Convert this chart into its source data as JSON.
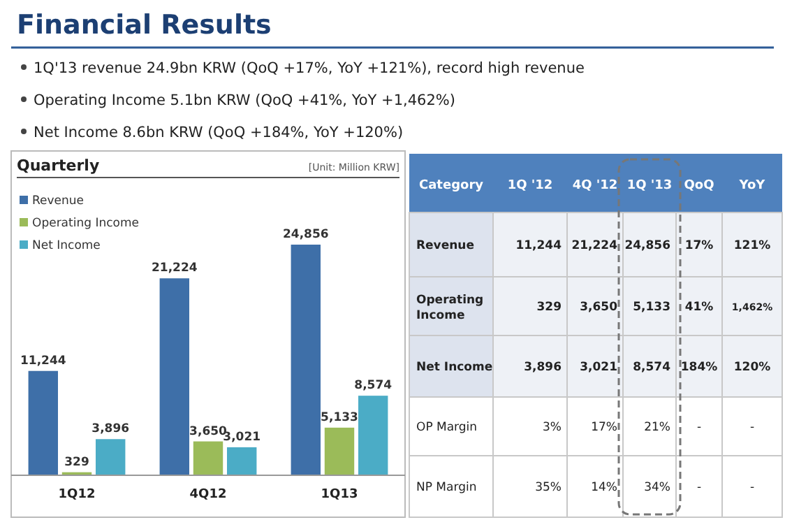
{
  "chart_data": [
    {
      "type": "bar",
      "title": "Quarterly",
      "categories": [
        "1Q12",
        "4Q12",
        "1Q13"
      ],
      "series": [
        {
          "name": "Revenue",
          "color": "#3e6fa8",
          "values": [
            11244,
            21224,
            24856
          ],
          "value_labels": [
            "11,244",
            "21,224",
            "24,856"
          ]
        },
        {
          "name": "Operating Income",
          "color": "#9bbb59",
          "values": [
            329,
            3650,
            5133
          ],
          "value_labels": [
            "329",
            "3,650",
            "5,133"
          ]
        },
        {
          "name": "Net Income",
          "color": "#4bacc6",
          "values": [
            3896,
            3021,
            8574
          ],
          "value_labels": [
            "3,896",
            "3,021",
            "8,574"
          ]
        }
      ],
      "legend": "top left",
      "annotations": [
        "Financial Results",
        "1Q'13 revenue 24.9bn KRW (QoQ +17%, YoY +121%), record high revenue",
        "Operating Income 5.1bn KRW (QoQ +41%, YoY +1,462%)",
        "Net Income 8.6bn KRW (QoQ +184%, YoY +120%)",
        "[Unit: Million KRW]"
      ]
    },
    {
      "type": "other",
      "ylabel": "Category",
      "categories": [
        "1Q '12",
        "4Q '12",
        "1Q '13",
        "QoQ",
        "YoY"
      ],
      "y_categories": [
        "Revenue",
        "Operating Income",
        "Net Income",
        "OP Margin",
        "NP Margin"
      ],
      "cell_labels": [
        [
          "11,244",
          "21,224",
          "24,856",
          "17%",
          "121%"
        ],
        [
          "329",
          "3,650",
          "5,133",
          "41%",
          "1,462%"
        ],
        [
          "3,896",
          "3,021",
          "8,574",
          "184%",
          "120%"
        ],
        [
          "3%",
          "17%",
          "21%",
          "-",
          "-"
        ],
        [
          "35%",
          "14%",
          "34%",
          "-",
          "-"
        ]
      ]
    }
  ]
}
